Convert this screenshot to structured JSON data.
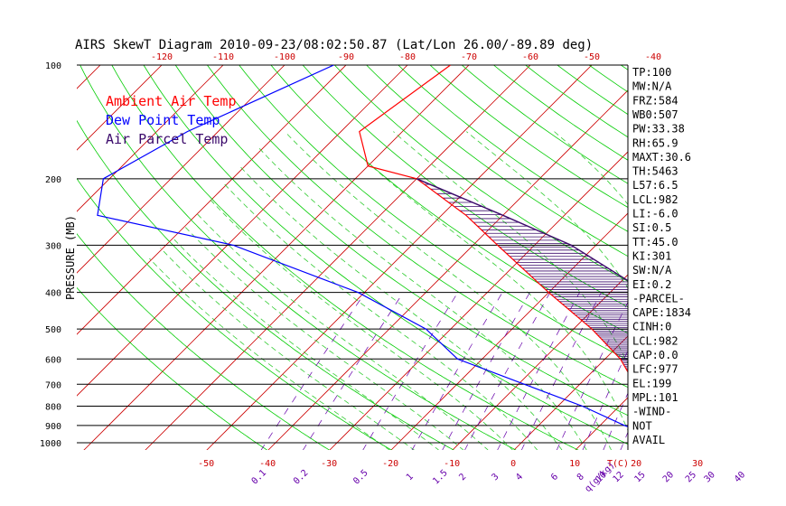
{
  "title": "AIRS SkewT Diagram 2010-09-23/08:02:50.87 (Lat/Lon 26.00/-89.89 deg)",
  "colors": {
    "ambient": "#ff0000",
    "dewpoint": "#0000ff",
    "parcel": "#3b0a6b",
    "isotherm": "#cc0000",
    "dry_adiabat": "#00cc00",
    "moist_adiabat": "#33cc33",
    "mixing_ratio": "#6600aa",
    "isobar": "#000000",
    "hatch": "#3b0a6b"
  },
  "chart_data": {
    "type": "line",
    "title": "AIRS SkewT Diagram 2010-09-23/08:02:50.87 (Lat/Lon 26.00/-89.89 deg)",
    "ylabel": "PRESSURE (MB)",
    "y_scale": "log",
    "y_reversed": true,
    "ylim": [
      1050,
      100
    ],
    "pressure_ticks": [
      100,
      200,
      300,
      400,
      500,
      600,
      700,
      800,
      900,
      1000
    ],
    "pressure_tick_labels": [
      "100",
      "200",
      "300",
      "400",
      "500",
      "600",
      "700",
      "800",
      "900",
      "1000"
    ],
    "top_temp_labels": [
      "-120",
      "-110",
      "-100",
      "-90",
      "-80",
      "-70",
      "-60",
      "-50",
      "-40"
    ],
    "bottom_temp_labels": [
      "-50",
      "-40",
      "-30",
      "-20",
      "-10",
      "0",
      "10",
      "20",
      "30",
      "T(C)"
    ],
    "mixing_ratio_labels": [
      "0.1",
      "0.2",
      "0.5",
      "1",
      "1.5",
      "2",
      "3",
      "4",
      "6",
      "8",
      "10",
      "12",
      "15",
      "20",
      "25",
      "30",
      "40",
      "q(g/kg)"
    ],
    "mixing_ratio_values": [
      0.1,
      0.2,
      0.5,
      1,
      1.5,
      2,
      3,
      4,
      6,
      8,
      10,
      12,
      15,
      20,
      25,
      30,
      40
    ],
    "legend": [
      {
        "label": "Ambient Air Temp",
        "color": "#ff0000"
      },
      {
        "label": "Dew Point Temp",
        "color": "#0000ff"
      },
      {
        "label": "Air Parcel Temp",
        "color": "#3b0a6b"
      }
    ],
    "series": [
      {
        "name": "Ambient Air Temp",
        "color": "#ff0000",
        "points": [
          {
            "p": 100,
            "t": -73
          },
          {
            "p": 150,
            "t": -77
          },
          {
            "p": 185,
            "t": -70
          },
          {
            "p": 200,
            "t": -60
          },
          {
            "p": 250,
            "t": -46
          },
          {
            "p": 300,
            "t": -36
          },
          {
            "p": 400,
            "t": -20
          },
          {
            "p": 500,
            "t": -7
          },
          {
            "p": 600,
            "t": 2.5
          },
          {
            "p": 700,
            "t": 9
          },
          {
            "p": 800,
            "t": 14
          },
          {
            "p": 900,
            "t": 19
          },
          {
            "p": 975,
            "t": 25
          },
          {
            "p": 1000,
            "t": 30
          }
        ]
      },
      {
        "name": "Dew Point Temp",
        "color": "#0000ff",
        "points": [
          {
            "p": 100,
            "t": -92
          },
          {
            "p": 150,
            "t": -105
          },
          {
            "p": 200,
            "t": -111
          },
          {
            "p": 250,
            "t": -106
          },
          {
            "p": 300,
            "t": -79
          },
          {
            "p": 400,
            "t": -51
          },
          {
            "p": 500,
            "t": -34
          },
          {
            "p": 600,
            "t": -24
          },
          {
            "p": 700,
            "t": -9
          },
          {
            "p": 800,
            "t": 4
          },
          {
            "p": 900,
            "t": 14
          },
          {
            "p": 975,
            "t": 22
          },
          {
            "p": 1000,
            "t": 24
          }
        ]
      },
      {
        "name": "Air Parcel Temp",
        "color": "#3b0a6b",
        "points": [
          {
            "p": 1000,
            "t": 29
          },
          {
            "p": 975,
            "t": 25
          },
          {
            "p": 900,
            "t": 23
          },
          {
            "p": 800,
            "t": 20
          },
          {
            "p": 700,
            "t": 17
          },
          {
            "p": 600,
            "t": 12
          },
          {
            "p": 500,
            "t": 6
          },
          {
            "p": 400,
            "t": -4
          },
          {
            "p": 300,
            "t": -24
          },
          {
            "p": 250,
            "t": -40
          },
          {
            "p": 200,
            "t": -60
          }
        ]
      }
    ],
    "stats": [
      "TP:100",
      "MW:N/A",
      "FRZ:584",
      "WB0:507",
      "PW:33.38",
      "RH:65.9",
      "MAXT:30.6",
      "TH:5463",
      "L57:6.5",
      "LCL:982",
      "LI:-6.0",
      "SI:0.5",
      "TT:45.0",
      "KI:301",
      "SW:N/A",
      "EI:0.2",
      "-PARCEL-",
      "CAPE:1834",
      "CINH:0",
      "LCL:982",
      "CAP:0.0",
      "LFC:977",
      "EL:199",
      "MPL:101",
      "-WIND-",
      "NOT",
      "AVAIL"
    ]
  }
}
